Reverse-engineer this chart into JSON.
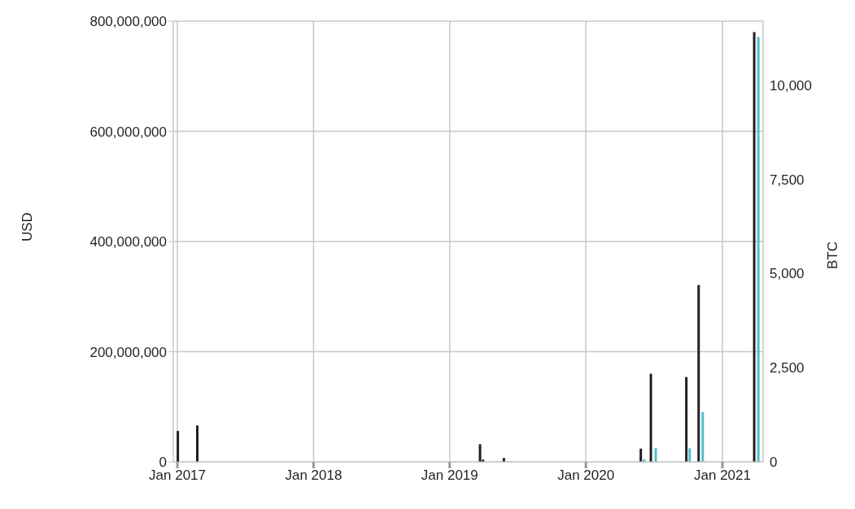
{
  "chart_data": {
    "type": "bar",
    "ylabel": "USD",
    "y2label": "BTC",
    "series": [
      {
        "color": "#231f20",
        "x": [
          "2017-01-03",
          "2017-02-24",
          "2019-03-24",
          "2019-04-01",
          "2019-05-27",
          "2020-05-28",
          "2020-06-24",
          "2020-09-27",
          "2020-10-30",
          "2021-03-28"
        ],
        "values": [
          56000000,
          66000000,
          32000000,
          4000000,
          7000000,
          24000000,
          160000000,
          154000000,
          321000000,
          780000000
        ]
      },
      {
        "color": "#4fbfca",
        "axis": "y2",
        "x": [
          "2020-06-06",
          "2020-07-07",
          "2020-10-06",
          "2020-11-10",
          "2021-04-08"
        ],
        "values": [
          70,
          360,
          360,
          1320,
          11280
        ]
      }
    ],
    "xlim": [
      "2016-12-21",
      "2021-04-20"
    ],
    "xticks": [
      {
        "value": "2017-01-01",
        "label": "Jan 2017"
      },
      {
        "value": "2018-01-01",
        "label": "Jan 2018"
      },
      {
        "value": "2019-01-01",
        "label": "Jan 2019"
      },
      {
        "value": "2020-01-01",
        "label": "Jan 2020"
      },
      {
        "value": "2021-01-01",
        "label": "Jan 2021"
      }
    ],
    "ylim": [
      0,
      800000000
    ],
    "yticks": [
      0,
      {
        "value": 200000000,
        "label": "200,000,000"
      },
      {
        "value": 400000000,
        "label": "400,000,000"
      },
      {
        "value": 600000000,
        "label": "600,000,000"
      },
      {
        "value": 800000000,
        "label": "800,000,000"
      }
    ],
    "y2lim": [
      0,
      11700
    ],
    "y2ticks": [
      0,
      {
        "value": 2500,
        "label": "2,500"
      },
      {
        "value": 5000,
        "label": "5,000"
      },
      {
        "value": 7500,
        "label": "7,500"
      },
      {
        "value": 10000,
        "label": "10,000"
      }
    ],
    "grid": true,
    "legend": false
  }
}
